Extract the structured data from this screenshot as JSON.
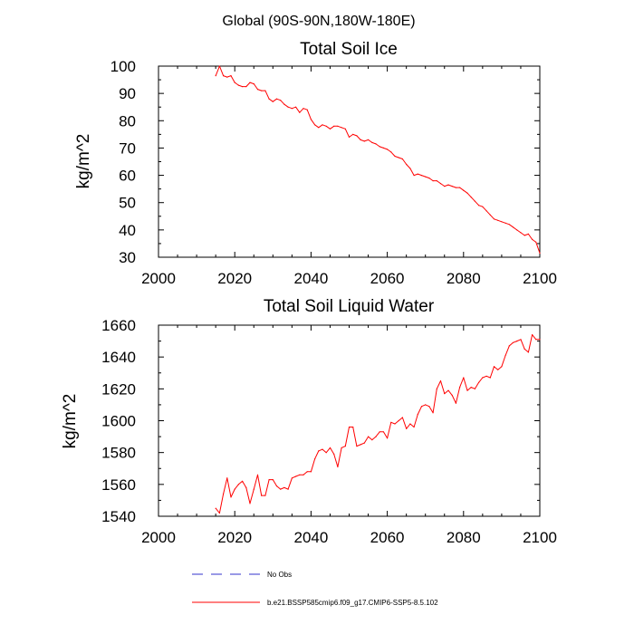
{
  "page": {
    "suptitle": "Global (90S-90N,180W-180E)"
  },
  "chart_data": [
    {
      "type": "line",
      "title": "Total Soil Ice",
      "xlabel": "",
      "ylabel": "kg/m^2",
      "xlim": [
        2000,
        2100
      ],
      "ylim": [
        30,
        100
      ],
      "xticks": [
        2000,
        2020,
        2040,
        2060,
        2080,
        2100
      ],
      "yticks": [
        30,
        40,
        50,
        60,
        70,
        80,
        90,
        100
      ],
      "grid": false,
      "series": [
        {
          "name": "b.e21.BSSP585cmip6.f09_g17.CMIP6-SSP5-8.5.102",
          "color": "#ff0000",
          "x": [
            2015,
            2016,
            2017,
            2018,
            2019,
            2020,
            2021,
            2022,
            2023,
            2024,
            2025,
            2026,
            2027,
            2028,
            2029,
            2030,
            2031,
            2032,
            2033,
            2034,
            2035,
            2036,
            2037,
            2038,
            2039,
            2040,
            2041,
            2042,
            2043,
            2044,
            2045,
            2046,
            2047,
            2048,
            2049,
            2050,
            2051,
            2052,
            2053,
            2054,
            2055,
            2056,
            2057,
            2058,
            2059,
            2060,
            2061,
            2062,
            2063,
            2064,
            2065,
            2066,
            2067,
            2068,
            2069,
            2070,
            2071,
            2072,
            2073,
            2074,
            2075,
            2076,
            2077,
            2078,
            2079,
            2080,
            2081,
            2082,
            2083,
            2084,
            2085,
            2086,
            2087,
            2088,
            2089,
            2090,
            2091,
            2092,
            2093,
            2094,
            2095,
            2096,
            2097,
            2098,
            2099,
            2100
          ],
          "values": [
            96.5,
            100,
            96.5,
            96,
            96.5,
            94,
            93,
            92.5,
            92.5,
            94,
            93.5,
            91.5,
            91,
            91,
            88,
            87,
            88,
            87.5,
            86,
            85,
            84.5,
            85,
            83,
            84.5,
            84,
            80.5,
            78.5,
            77.5,
            78.5,
            78,
            77,
            78,
            78,
            77.5,
            77,
            74,
            75,
            74.5,
            73,
            72.5,
            73,
            72,
            71.5,
            70.5,
            70,
            69.5,
            68.5,
            67,
            66.5,
            66,
            64,
            62.5,
            60,
            60.5,
            60,
            59.5,
            59,
            58,
            58,
            57,
            56,
            56.5,
            56,
            55.5,
            55.5,
            54.5,
            53.5,
            52,
            50.5,
            49,
            48.5,
            47,
            45.5,
            44,
            43.5,
            43,
            42.5,
            42,
            41,
            40,
            39,
            38,
            38.5,
            36.5,
            35.5,
            31.5
          ]
        }
      ]
    },
    {
      "type": "line",
      "title": "Total Soil Liquid Water",
      "xlabel": "",
      "ylabel": "kg/m^2",
      "xlim": [
        2000,
        2100
      ],
      "ylim": [
        1540,
        1660
      ],
      "xticks": [
        2000,
        2020,
        2040,
        2060,
        2080,
        2100
      ],
      "yticks": [
        1540,
        1560,
        1580,
        1600,
        1620,
        1640,
        1660
      ],
      "grid": false,
      "series": [
        {
          "name": "b.e21.BSSP585cmip6.f09_g17.CMIP6-SSP5-8.5.102",
          "color": "#ff0000",
          "x": [
            2015,
            2016,
            2017,
            2018,
            2019,
            2020,
            2021,
            2022,
            2023,
            2024,
            2025,
            2026,
            2027,
            2028,
            2029,
            2030,
            2031,
            2032,
            2033,
            2034,
            2035,
            2036,
            2037,
            2038,
            2039,
            2040,
            2041,
            2042,
            2043,
            2044,
            2045,
            2046,
            2047,
            2048,
            2049,
            2050,
            2051,
            2052,
            2053,
            2054,
            2055,
            2056,
            2057,
            2058,
            2059,
            2060,
            2061,
            2062,
            2063,
            2064,
            2065,
            2066,
            2067,
            2068,
            2069,
            2070,
            2071,
            2072,
            2073,
            2074,
            2075,
            2076,
            2077,
            2078,
            2079,
            2080,
            2081,
            2082,
            2083,
            2084,
            2085,
            2086,
            2087,
            2088,
            2089,
            2090,
            2091,
            2092,
            2093,
            2094,
            2095,
            2096,
            2097,
            2098,
            2099,
            2100
          ],
          "values": [
            1545,
            1542,
            1554,
            1564,
            1552,
            1557,
            1560,
            1562,
            1558,
            1548,
            1557,
            1566,
            1553,
            1553,
            1563,
            1563,
            1559,
            1557,
            1558,
            1557,
            1564,
            1565,
            1566,
            1566,
            1568,
            1568,
            1576,
            1581,
            1582,
            1580,
            1583,
            1579,
            1571,
            1583,
            1584,
            1596,
            1596,
            1584,
            1585,
            1586,
            1590,
            1588,
            1590,
            1593,
            1593,
            1589,
            1599,
            1598,
            1600,
            1602,
            1595,
            1598,
            1596,
            1604,
            1609,
            1610,
            1609,
            1605,
            1620,
            1625,
            1617,
            1619,
            1616,
            1611,
            1621,
            1627,
            1619,
            1621,
            1620,
            1624,
            1627,
            1628,
            1627,
            1634,
            1632,
            1634,
            1641,
            1647,
            1649,
            1650,
            1651,
            1645,
            1643,
            1654,
            1651,
            1651
          ]
        }
      ]
    }
  ],
  "legend": {
    "placement": "bottom-center",
    "entries": [
      {
        "label": "No Obs",
        "color": "#3333cc",
        "style": "dashed"
      },
      {
        "label": "b.e21.BSSP585cmip6.f09_g17.CMIP6-SSP5-8.5.102",
        "color": "#ff0000",
        "style": "solid"
      }
    ]
  }
}
